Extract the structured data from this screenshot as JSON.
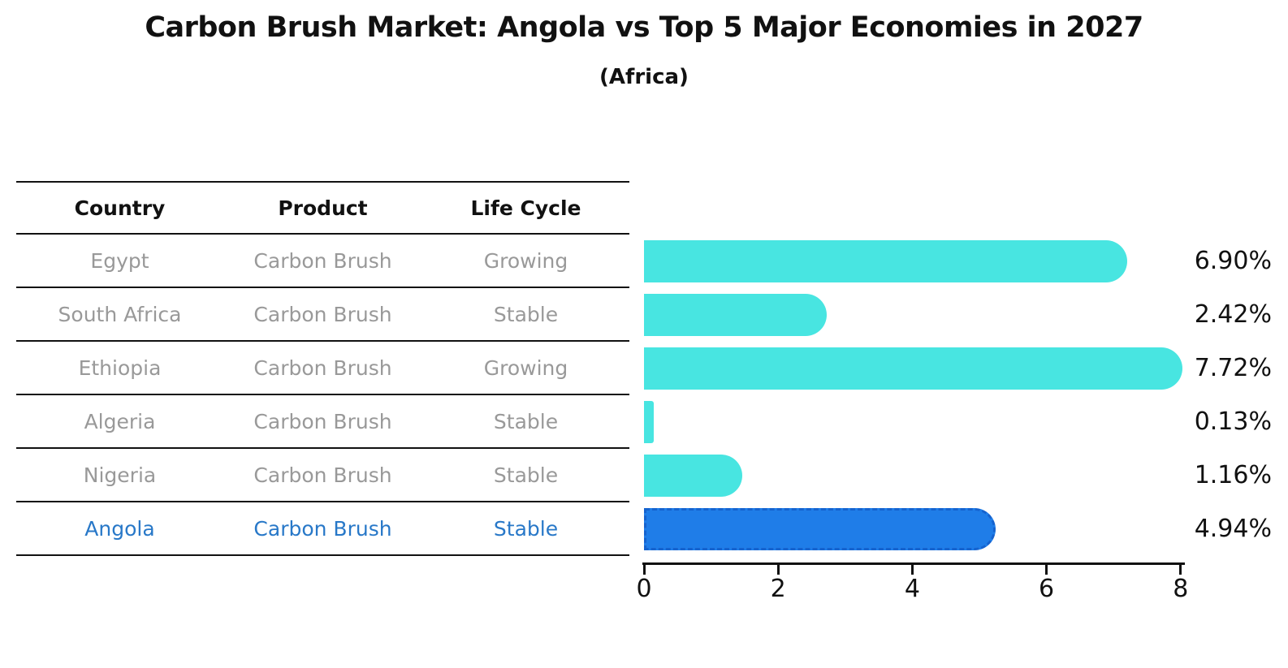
{
  "page": {
    "title": "Carbon Brush Market: Angola vs Top 5 Major Economies in 2027",
    "subtitle": "(Africa)"
  },
  "table": {
    "headers": [
      "Country",
      "Product",
      "Life Cycle"
    ],
    "rows": [
      {
        "country": "Egypt",
        "product": "Carbon Brush",
        "life_cycle": "Growing",
        "highlight": false
      },
      {
        "country": "South Africa",
        "product": "Carbon Brush",
        "life_cycle": "Stable",
        "highlight": false
      },
      {
        "country": "Ethiopia",
        "product": "Carbon Brush",
        "life_cycle": "Growing",
        "highlight": false
      },
      {
        "country": "Algeria",
        "product": "Carbon Brush",
        "life_cycle": "Stable",
        "highlight": false
      },
      {
        "country": "Nigeria",
        "product": "Carbon Brush",
        "life_cycle": "Stable",
        "highlight": false
      },
      {
        "country": "Angola",
        "product": "Carbon Brush",
        "life_cycle": "Stable",
        "highlight": true
      }
    ]
  },
  "chart_data": {
    "type": "bar",
    "orientation": "horizontal",
    "title": "Carbon Brush Market: Angola vs Top 5 Major Economies in 2027",
    "subtitle": "(Africa)",
    "categories": [
      "Egypt",
      "South Africa",
      "Ethiopia",
      "Algeria",
      "Nigeria",
      "Angola"
    ],
    "values": [
      6.9,
      2.42,
      7.72,
      0.13,
      1.16,
      4.94
    ],
    "value_labels": [
      "6.90%",
      "2.42%",
      "7.72%",
      "0.13%",
      "1.16%",
      "4.94%"
    ],
    "highlight_index": 5,
    "x_ticks": [
      0,
      2,
      4,
      6,
      8
    ],
    "xlim": [
      0,
      8
    ],
    "grid": false,
    "legend": false
  },
  "colors": {
    "bar": "#48e5e1",
    "highlight_bar": "#1f7de8",
    "highlight_border": "#1563cf",
    "highlight_text": "#2878c8",
    "row_text": "#999999",
    "header_text": "#111111"
  }
}
